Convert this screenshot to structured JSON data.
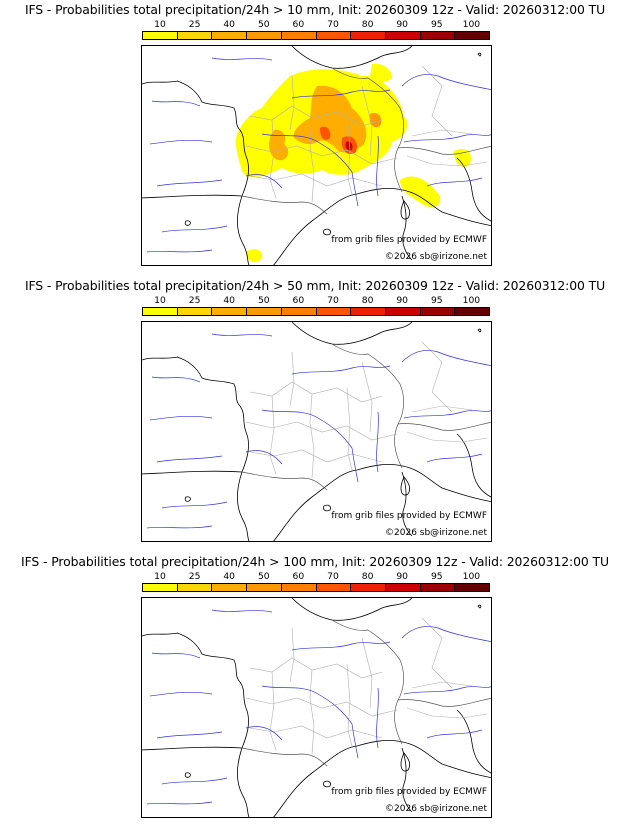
{
  "colorbar": {
    "labels": [
      "10",
      "25",
      "40",
      "50",
      "60",
      "70",
      "80",
      "90",
      "95",
      "100"
    ],
    "colors": [
      "#ffff00",
      "#ffd700",
      "#ffae00",
      "#ff9900",
      "#ff7f00",
      "#ff5500",
      "#ee2200",
      "#cc0000",
      "#990000",
      "#660000"
    ]
  },
  "map_colors": {
    "coast": "#000000",
    "rivers": "#3333dd",
    "borders": "#555555",
    "regions": "#b0b0b0"
  },
  "panels": [
    {
      "title": "IFS - Probabilities total precipitation/24h > 10 mm, Init: 20260309 12z - Valid: 20260312:00 TU",
      "has_precip": true
    },
    {
      "title": "IFS - Probabilities total precipitation/24h > 50 mm, Init: 20260309 12z - Valid: 20260312:00 TU",
      "has_precip": false
    },
    {
      "title": "IFS - Probabilities total precipitation/24h > 100 mm, Init: 20260309 12z - Valid: 20260312:00 TU",
      "has_precip": false
    }
  ],
  "credits": {
    "source": "from grib files provided by ECMWF",
    "copyright": "©2026 sb@irizone.net"
  }
}
